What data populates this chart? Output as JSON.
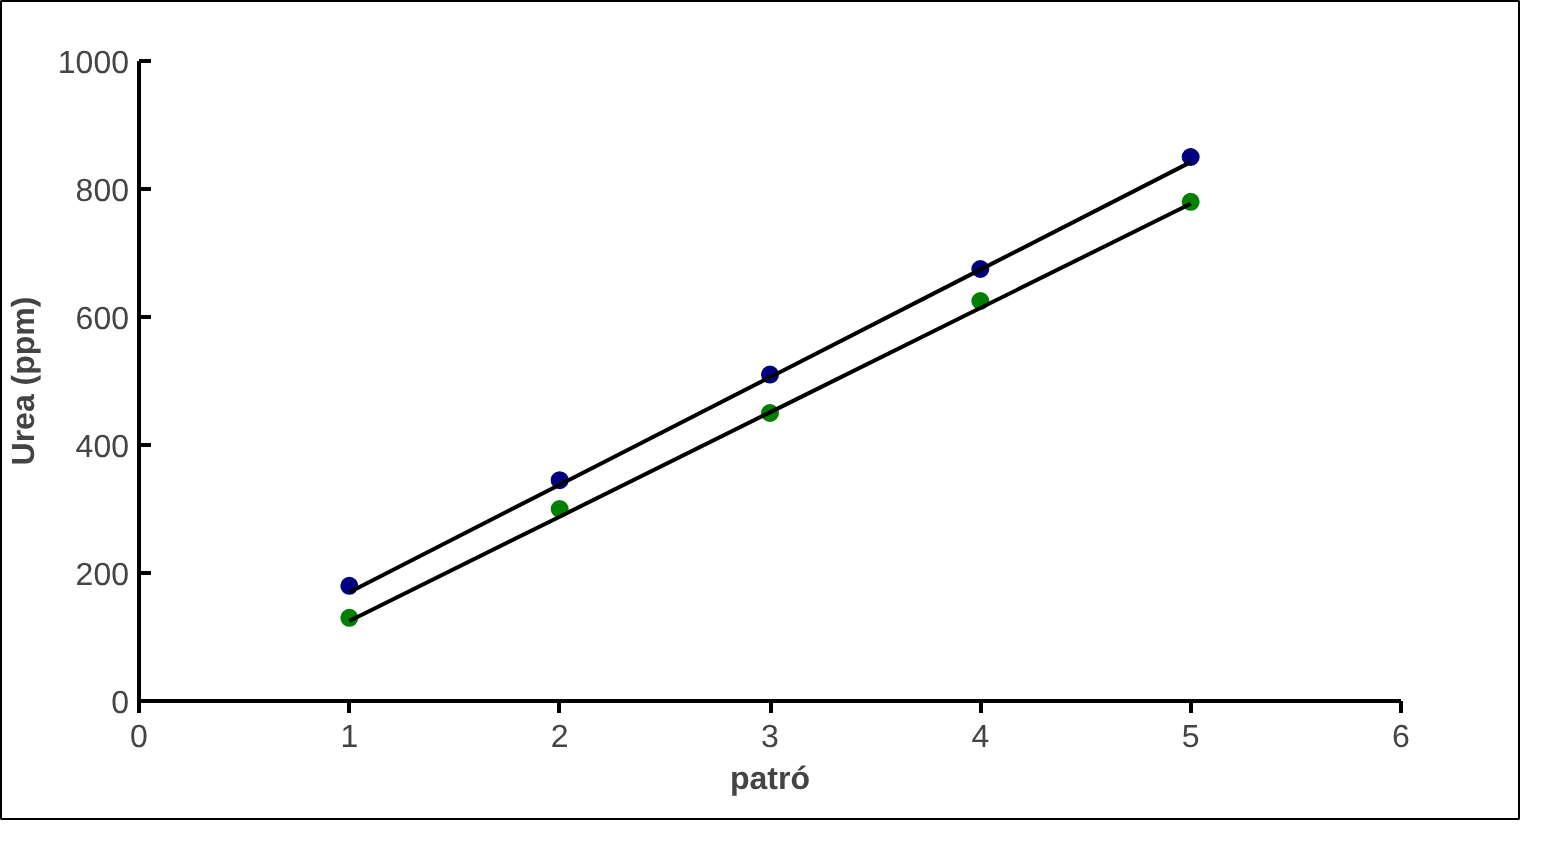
{
  "chart_data": {
    "type": "scatter",
    "xlabel": "patró",
    "ylabel": "Urea (ppm)",
    "x": [
      1,
      2,
      3,
      4,
      5
    ],
    "series": [
      {
        "color": "#000080",
        "marker": "circle",
        "values": [
          180,
          345,
          510,
          675,
          850
        ]
      },
      {
        "color": "#008000",
        "marker": "circle",
        "values": [
          130,
          300,
          450,
          625,
          780
        ]
      },
      {
        "type": "line",
        "color": "#000000",
        "marker": "none",
        "line_style": "solid",
        "x": [
          1,
          2,
          3,
          4,
          5
        ],
        "values": [
          170,
          338,
          506,
          674,
          842
        ]
      },
      {
        "type": "line",
        "color": "#000000",
        "marker": "none",
        "line_style": "solid",
        "x": [
          1,
          2,
          3,
          4,
          5
        ],
        "values": [
          125,
          288,
          451,
          614,
          777
        ]
      }
    ],
    "xlim": [
      0,
      6
    ],
    "ylim": [
      0,
      1000
    ],
    "xticks": [
      0,
      1,
      2,
      3,
      4,
      5,
      6
    ],
    "yticks": [
      0,
      200,
      400,
      600,
      800,
      1000
    ],
    "grid": false
  }
}
